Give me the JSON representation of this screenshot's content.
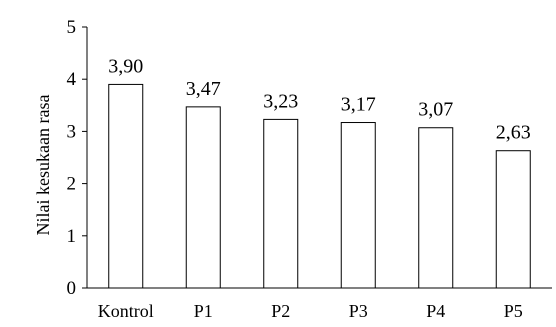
{
  "chart_data": {
    "type": "bar",
    "categories": [
      "Kontrol",
      "P1",
      "P2",
      "P3",
      "P4",
      "P5"
    ],
    "values": [
      3.9,
      3.47,
      3.23,
      3.17,
      3.07,
      2.63
    ],
    "value_labels": [
      "3,90",
      "3,47",
      "3,23",
      "3,17",
      "3,07",
      "2,63"
    ],
    "ylabel": "Nilai kesukaan rasa",
    "ylim": [
      0,
      5
    ],
    "yticks": [
      0,
      1,
      2,
      3,
      4,
      5
    ],
    "ytick_labels": [
      "0",
      "1",
      "2",
      "3",
      "4",
      "5"
    ],
    "grid": false,
    "legend": "none",
    "bar_fill": "#ffffff",
    "bar_stroke": "#000000"
  }
}
